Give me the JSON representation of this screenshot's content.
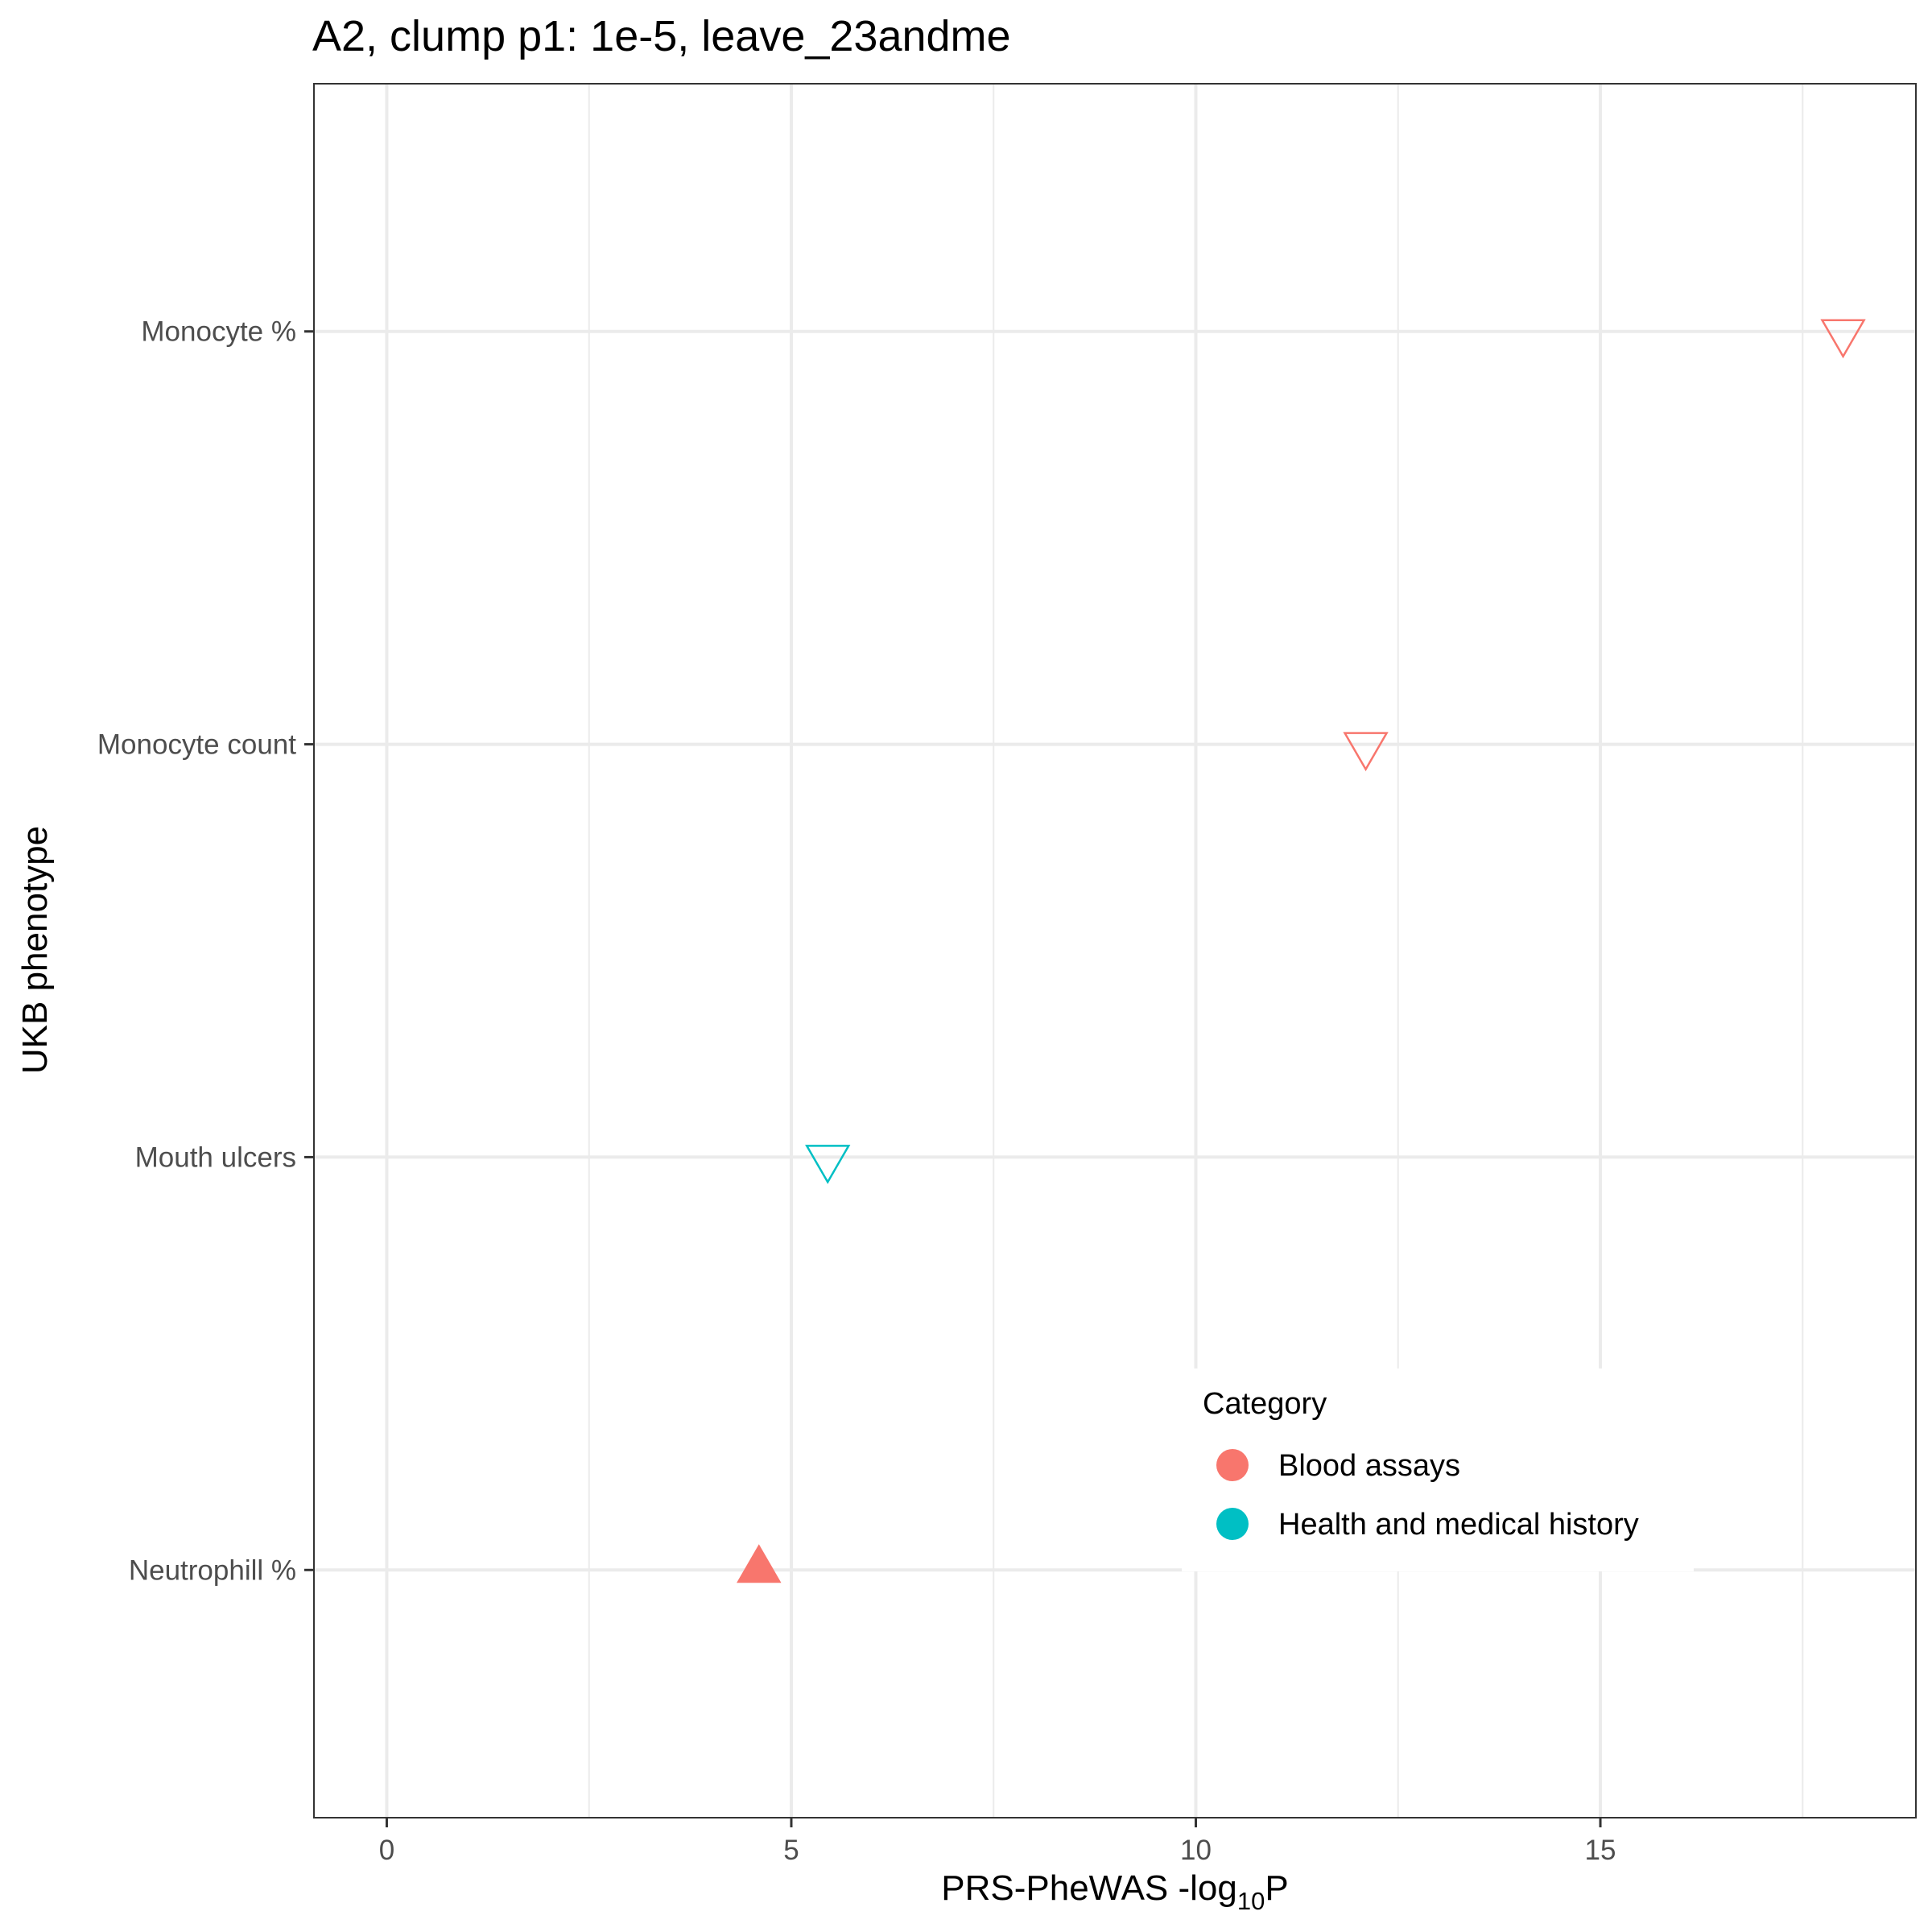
{
  "chart_data": {
    "type": "scatter",
    "title": "A2, clump p1: 1e-5, leave_23andme",
    "xlabel_main": "PRS-PheWAS -log",
    "xlabel_sub": "10",
    "xlabel_end": "P",
    "ylabel": "UKB phenotype",
    "xlim": [
      -0.9,
      18.9
    ],
    "x_ticks": [
      0,
      5,
      10,
      15
    ],
    "x_tick_labels": [
      "0",
      "5",
      "10",
      "15"
    ],
    "categories": [
      "Neutrophill %",
      "Mouth ulcers",
      "Monocyte count",
      "Monocyte %"
    ],
    "grid": true,
    "legend": {
      "title": "Category",
      "position": "bottom-right-inside",
      "entries": [
        {
          "name": "Blood assays",
          "color": "#F8766D"
        },
        {
          "name": "Health and medical history",
          "color": "#00BFC4"
        }
      ]
    },
    "points": [
      {
        "category": "Monocyte %",
        "x": 18.0,
        "group": "Blood assays",
        "shape": "triangle-down-open"
      },
      {
        "category": "Monocyte count",
        "x": 12.1,
        "group": "Blood assays",
        "shape": "triangle-down-open"
      },
      {
        "category": "Mouth ulcers",
        "x": 5.45,
        "group": "Health and medical history",
        "shape": "triangle-down-open"
      },
      {
        "category": "Neutrophill %",
        "x": 4.6,
        "group": "Blood assays",
        "shape": "triangle-up-filled"
      }
    ]
  }
}
